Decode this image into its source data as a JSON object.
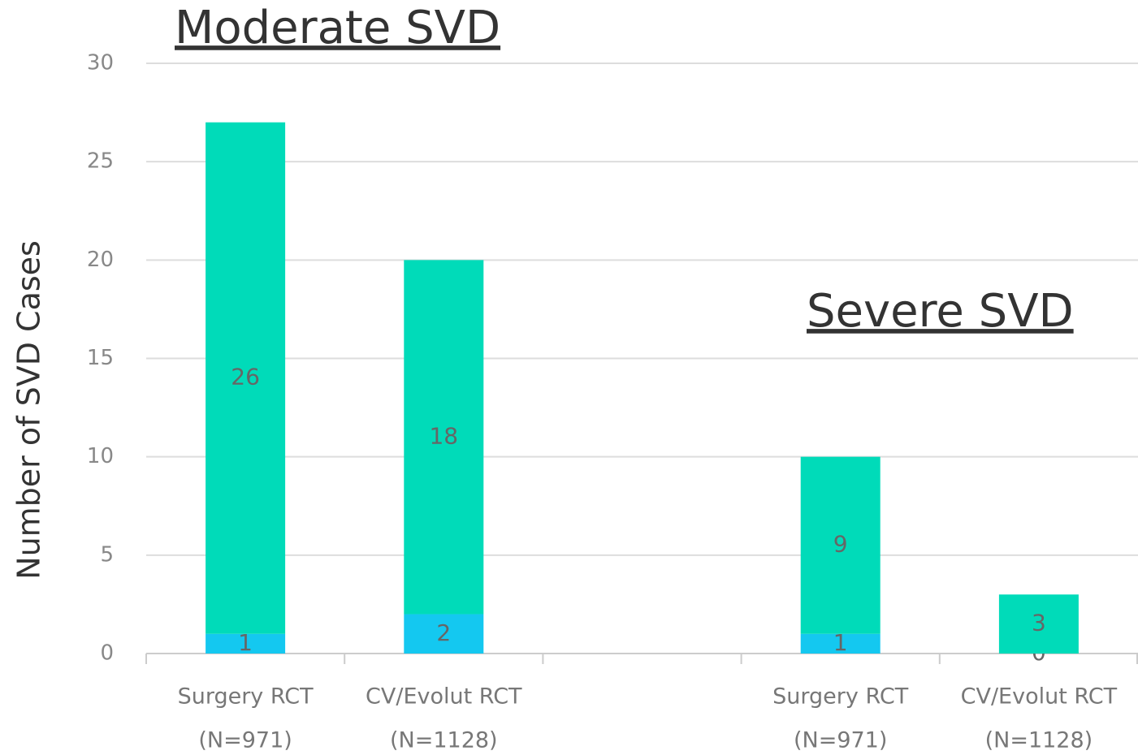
{
  "chart_data": {
    "type": "stacked_bar",
    "annotations": [
      "Moderate SVD",
      "Severe SVD"
    ],
    "y_label": "Number of SVD Cases",
    "categories": [
      [
        "Surgery RCT",
        "(N=971)"
      ],
      [
        "CV/Evolut RCT",
        "(N=1128)"
      ],
      null,
      [
        "Surgery RCT",
        "(N=971)"
      ],
      [
        "CV/Evolut RCT",
        "(N=1128)"
      ]
    ],
    "series": [
      {
        "color": "#14c8f0",
        "values": [
          1,
          2,
          null,
          1,
          0
        ]
      },
      {
        "color": "#00dbb9",
        "values": [
          26,
          18,
          null,
          9,
          3
        ]
      }
    ],
    "ylim": [
      0,
      30
    ],
    "yticks": [
      0,
      5,
      10,
      15,
      20,
      25,
      30
    ],
    "grid": true
  }
}
